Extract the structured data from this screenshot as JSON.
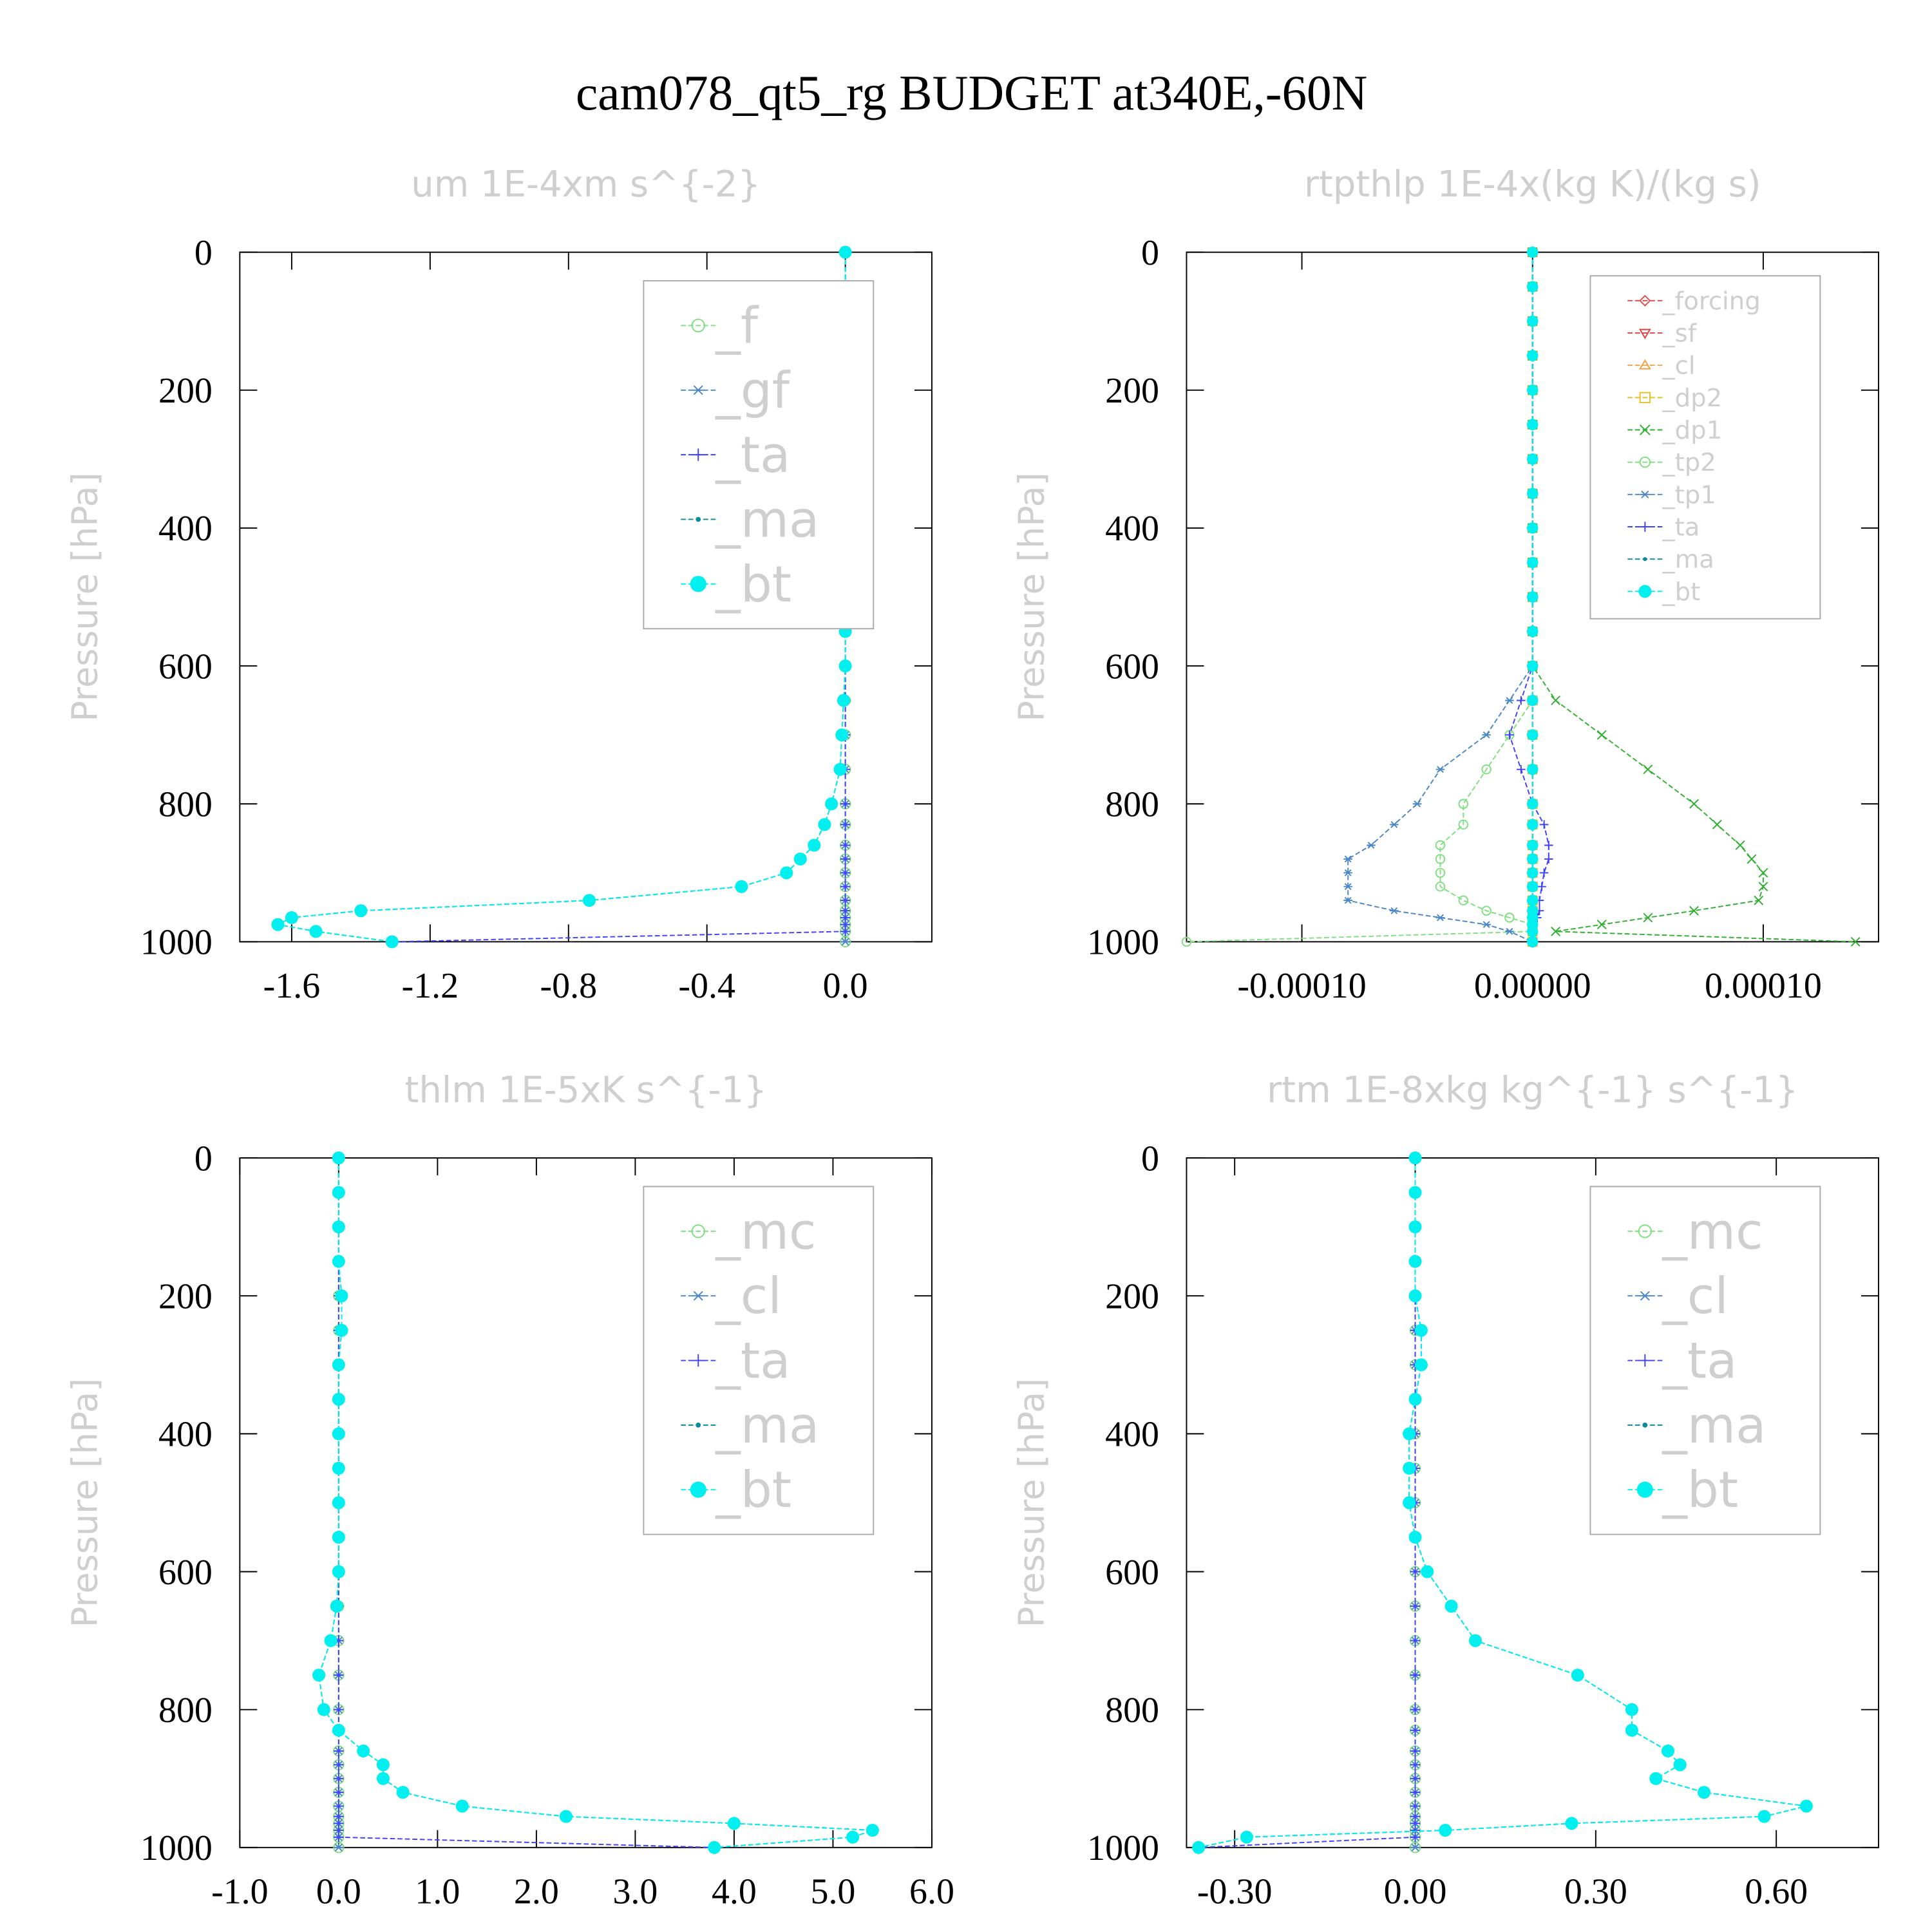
{
  "title": "cam078_qt5_rg  BUDGET at340E,-60N",
  "chart_data": [
    {
      "type": "line",
      "title": "um  1E-4xm s^{-2}",
      "ylabel": "Pressure [hPa]",
      "y": [
        0,
        50,
        100,
        150,
        200,
        250,
        300,
        350,
        400,
        450,
        500,
        550,
        600,
        650,
        700,
        750,
        800,
        830,
        860,
        880,
        900,
        920,
        940,
        955,
        965,
        975,
        985,
        1000
      ],
      "ylim": [
        1000,
        0
      ],
      "yticks": [
        0,
        200,
        400,
        600,
        800,
        1000
      ],
      "xlim": [
        -1.75,
        0.25
      ],
      "xticks": [
        -1.6,
        -1.2,
        -0.8,
        -0.4,
        {
          "value": 0,
          "label": "0.0"
        }
      ],
      "legend": "upper right",
      "series": [
        {
          "name": "_f",
          "color": "#7ee07e",
          "marker": "circle",
          "values": [
            0,
            0,
            0,
            0,
            0,
            0,
            0,
            0,
            0,
            0,
            0,
            0,
            0,
            0,
            0,
            0,
            0,
            0,
            0,
            0,
            0,
            0,
            0,
            0,
            0,
            0,
            0,
            0
          ]
        },
        {
          "name": "_gf",
          "color": "#4a86c8",
          "marker": "star",
          "values": [
            0,
            0,
            0,
            0,
            0,
            0,
            0,
            0,
            0,
            0,
            0,
            0,
            0,
            0,
            0,
            0,
            0,
            0,
            0,
            0,
            0,
            0,
            0,
            0,
            0,
            0,
            0,
            0
          ]
        },
        {
          "name": "_ta",
          "color": "#4040ff",
          "marker": "plus",
          "values": [
            0,
            0,
            0,
            0,
            0,
            0,
            0,
            0,
            0,
            0,
            0,
            0,
            0,
            0,
            0,
            0,
            0,
            0,
            0,
            0,
            0,
            0,
            0,
            0,
            0,
            0,
            0,
            -1.3
          ]
        },
        {
          "name": "_ma",
          "color": "#0a8a9a",
          "marker": "dot",
          "values": [
            0,
            0,
            0,
            0,
            0,
            0,
            0,
            0,
            0,
            0,
            0,
            0,
            0,
            -0.005,
            -0.01,
            -0.015,
            -0.04,
            -0.06,
            -0.09,
            -0.13,
            -0.17,
            -0.3,
            -0.74,
            -1.4,
            -1.6,
            -1.64,
            -1.53,
            -1.31
          ]
        },
        {
          "name": "_bt",
          "color": "#00f0f0",
          "marker": "bullet",
          "values": [
            0,
            0,
            0,
            0,
            0,
            0,
            0,
            0,
            0,
            0,
            0,
            0,
            0,
            -0.005,
            -0.01,
            -0.015,
            -0.04,
            -0.06,
            -0.09,
            -0.13,
            -0.17,
            -0.3,
            -0.74,
            -1.4,
            -1.6,
            -1.64,
            -1.53,
            -1.31
          ]
        }
      ]
    },
    {
      "type": "line",
      "title": "rtpthlp  1E-4x(kg K)/(kg s)",
      "ylabel": "Pressure [hPa]",
      "y": [
        0,
        50,
        100,
        150,
        200,
        250,
        300,
        350,
        400,
        450,
        500,
        550,
        600,
        650,
        700,
        750,
        800,
        830,
        860,
        880,
        900,
        920,
        940,
        955,
        965,
        975,
        985,
        1000
      ],
      "ylim": [
        1000,
        0
      ],
      "yticks": [
        0,
        200,
        400,
        600,
        800,
        1000
      ],
      "xlim": [
        -0.00015,
        0.00015
      ],
      "xticks": [
        {
          "value": -0.0001,
          "label": "-0.00010"
        },
        {
          "value": 0,
          "label": "0.00000"
        },
        {
          "value": 0.0001,
          "label": "0.00010"
        }
      ],
      "legend": "upper right",
      "series": [
        {
          "name": "_forcing",
          "color": "#e05050",
          "marker": "diamond",
          "values": [
            0,
            0,
            0,
            0,
            0,
            0,
            0,
            0,
            0,
            0,
            0,
            0,
            0,
            0,
            0,
            0,
            0,
            0,
            0,
            0,
            0,
            0,
            0,
            0,
            0,
            0,
            0,
            0
          ]
        },
        {
          "name": "_sf",
          "color": "#e04040",
          "marker": "tri-down",
          "values": [
            0,
            0,
            0,
            0,
            0,
            0,
            0,
            0,
            0,
            0,
            0,
            0,
            0,
            0,
            0,
            0,
            0,
            0,
            0,
            0,
            0,
            0,
            0,
            0,
            0,
            0,
            0,
            0
          ]
        },
        {
          "name": "_cl",
          "color": "#f0a040",
          "marker": "tri-up",
          "values": [
            0,
            0,
            0,
            0,
            0,
            0,
            0,
            0,
            0,
            0,
            0,
            0,
            0,
            0,
            0,
            0,
            0,
            0,
            0,
            0,
            0,
            0,
            0,
            0,
            0,
            0,
            0,
            0
          ]
        },
        {
          "name": "_dp2",
          "color": "#e8c020",
          "marker": "square",
          "values": [
            0,
            0,
            0,
            0,
            0,
            0,
            0,
            0,
            0,
            0,
            0,
            0,
            0,
            0,
            0,
            0,
            0,
            0,
            0,
            0,
            0,
            0,
            0,
            0,
            0,
            0,
            0,
            0
          ]
        },
        {
          "name": "_dp1",
          "color": "#30b030",
          "marker": "x",
          "values": [
            0,
            0,
            0,
            0,
            0,
            0,
            0,
            0,
            0,
            0,
            0,
            0,
            0,
            1e-05,
            3e-05,
            5e-05,
            7e-05,
            8e-05,
            9e-05,
            9.5e-05,
            0.0001,
            0.0001,
            9.8e-05,
            7e-05,
            5e-05,
            3e-05,
            1e-05,
            0.00014
          ]
        },
        {
          "name": "_tp2",
          "color": "#7ee07e",
          "marker": "circle",
          "values": [
            0,
            0,
            0,
            0,
            0,
            0,
            0,
            0,
            0,
            0,
            0,
            0,
            0,
            0,
            -1e-05,
            -2e-05,
            -3e-05,
            -3e-05,
            -4e-05,
            -4e-05,
            -4e-05,
            -4e-05,
            -3e-05,
            -2e-05,
            -1e-05,
            0,
            0,
            -0.00015
          ]
        },
        {
          "name": "_tp1",
          "color": "#4a86c8",
          "marker": "star",
          "values": [
            0,
            0,
            0,
            0,
            0,
            0,
            0,
            0,
            0,
            0,
            0,
            0,
            0,
            -1e-05,
            -2e-05,
            -4e-05,
            -5e-05,
            -6e-05,
            -7e-05,
            -8e-05,
            -8e-05,
            -8e-05,
            -8e-05,
            -6e-05,
            -4e-05,
            -2e-05,
            -1e-05,
            0
          ]
        },
        {
          "name": "_ta",
          "color": "#4040ff",
          "marker": "plus",
          "values": [
            0,
            0,
            0,
            0,
            0,
            0,
            0,
            0,
            0,
            0,
            0,
            0,
            0,
            -5e-06,
            -1e-05,
            -5e-06,
            0,
            5e-06,
            7e-06,
            7e-06,
            5e-06,
            4e-06,
            3e-06,
            3e-06,
            2e-06,
            0,
            0,
            0
          ]
        },
        {
          "name": "_ma",
          "color": "#0a8a9a",
          "marker": "dot",
          "values": [
            0,
            0,
            0,
            0,
            0,
            0,
            0,
            0,
            0,
            0,
            0,
            0,
            0,
            0,
            0,
            0,
            0,
            0,
            0,
            0,
            0,
            0,
            0,
            0,
            0,
            0,
            0,
            0
          ]
        },
        {
          "name": "_bt",
          "color": "#00f0f0",
          "marker": "bullet",
          "values": [
            0,
            0,
            0,
            0,
            0,
            0,
            0,
            0,
            0,
            0,
            0,
            0,
            0,
            0,
            0,
            0,
            0,
            0,
            0,
            0,
            0,
            0,
            0,
            0,
            0,
            0,
            0,
            0
          ]
        }
      ]
    },
    {
      "type": "line",
      "title": "thlm  1E-5xK s^{-1}",
      "ylabel": "Pressure [hPa]",
      "y": [
        0,
        50,
        100,
        150,
        200,
        250,
        300,
        350,
        400,
        450,
        500,
        550,
        600,
        650,
        700,
        750,
        800,
        830,
        860,
        880,
        900,
        920,
        940,
        955,
        965,
        975,
        985,
        1000
      ],
      "ylim": [
        1000,
        0
      ],
      "yticks": [
        0,
        200,
        400,
        600,
        800,
        1000
      ],
      "xlim": [
        -1,
        6
      ],
      "xticks": [
        {
          "value": -1,
          "label": "-1.0"
        },
        {
          "value": 0,
          "label": "0.0"
        },
        {
          "value": 1,
          "label": "1.0"
        },
        {
          "value": 2,
          "label": "2.0"
        },
        {
          "value": 3,
          "label": "3.0"
        },
        {
          "value": 4,
          "label": "4.0"
        },
        {
          "value": 5,
          "label": "5.0"
        },
        {
          "value": 6,
          "label": "6.0"
        }
      ],
      "legend": "upper right",
      "series": [
        {
          "name": "_mc",
          "color": "#7ee07e",
          "marker": "circle",
          "values": [
            0,
            0,
            0,
            0,
            0,
            0,
            0,
            0,
            0,
            0,
            0,
            0,
            0,
            0,
            0,
            0,
            0,
            0,
            0,
            0,
            0,
            0,
            0,
            0,
            0,
            0,
            0,
            0
          ]
        },
        {
          "name": "_cl",
          "color": "#4a86c8",
          "marker": "star",
          "values": [
            0,
            0,
            0,
            0,
            0,
            0,
            0,
            0,
            0,
            0,
            0,
            0,
            0,
            0,
            0,
            0,
            0,
            0,
            0,
            0,
            0,
            0,
            0,
            0,
            0,
            0,
            0,
            0
          ]
        },
        {
          "name": "_ta",
          "color": "#4040ff",
          "marker": "plus",
          "values": [
            0,
            0,
            0,
            0,
            0,
            0,
            0,
            0,
            0,
            0,
            0,
            0,
            0,
            0,
            0,
            0,
            0,
            0,
            0,
            0,
            0,
            0,
            0,
            0,
            0,
            0,
            0,
            3.8
          ]
        },
        {
          "name": "_ma",
          "color": "#0a8a9a",
          "marker": "dot",
          "values": [
            0,
            0,
            0,
            0,
            0.03,
            0.03,
            0,
            0,
            0,
            0,
            0,
            0,
            0,
            -0.02,
            -0.08,
            -0.2,
            -0.15,
            0,
            0.25,
            0.45,
            0.45,
            0.65,
            1.25,
            2.3,
            4.0,
            5.4,
            5.2,
            3.8
          ]
        },
        {
          "name": "_bt",
          "color": "#00f0f0",
          "marker": "bullet",
          "values": [
            0,
            0,
            0,
            0,
            0.03,
            0.03,
            0,
            0,
            0,
            0,
            0,
            0,
            0,
            -0.02,
            -0.08,
            -0.2,
            -0.15,
            0,
            0.25,
            0.45,
            0.45,
            0.65,
            1.25,
            2.3,
            4.0,
            5.4,
            5.2,
            3.8
          ]
        }
      ]
    },
    {
      "type": "line",
      "title": "rtm  1E-8xkg kg^{-1} s^{-1}",
      "ylabel": "Pressure [hPa]",
      "y": [
        0,
        50,
        100,
        150,
        200,
        250,
        300,
        350,
        400,
        450,
        500,
        550,
        600,
        650,
        700,
        750,
        800,
        830,
        860,
        880,
        900,
        920,
        940,
        955,
        965,
        975,
        985,
        1000
      ],
      "ylim": [
        1000,
        0
      ],
      "yticks": [
        0,
        200,
        400,
        600,
        800,
        1000
      ],
      "xlim": [
        -0.38,
        0.77
      ],
      "xticks": [
        {
          "value": -0.3,
          "label": "-0.30"
        },
        {
          "value": 0,
          "label": "0.00"
        },
        {
          "value": 0.3,
          "label": "0.30"
        },
        {
          "value": 0.6,
          "label": "0.60"
        }
      ],
      "legend": "upper right",
      "series": [
        {
          "name": "_mc",
          "color": "#7ee07e",
          "marker": "circle",
          "values": [
            0,
            0,
            0,
            0,
            0,
            0,
            0,
            0,
            0,
            0,
            0,
            0,
            0,
            0,
            0,
            0,
            0,
            0,
            0,
            0,
            0,
            0,
            0,
            0,
            0,
            0,
            0,
            0
          ]
        },
        {
          "name": "_cl",
          "color": "#4a86c8",
          "marker": "star",
          "values": [
            0,
            0,
            0,
            0,
            0,
            0,
            0,
            0,
            0,
            0,
            0,
            0,
            0,
            0,
            0,
            0,
            0,
            0,
            0,
            0,
            0,
            0,
            0,
            0,
            0,
            0,
            0,
            0
          ]
        },
        {
          "name": "_ta",
          "color": "#4040ff",
          "marker": "plus",
          "values": [
            0,
            0,
            0,
            0,
            0,
            0,
            0,
            0,
            0,
            0,
            0,
            0,
            0,
            0,
            0,
            0,
            0,
            0,
            0,
            0,
            0,
            0,
            0,
            0,
            0,
            0,
            0,
            -0.36
          ]
        },
        {
          "name": "_ma",
          "color": "#0a8a9a",
          "marker": "dot",
          "values": [
            0,
            0,
            0,
            0,
            0,
            0.01,
            0.01,
            0,
            -0.01,
            -0.01,
            -0.01,
            0,
            0.02,
            0.06,
            0.1,
            0.27,
            0.36,
            0.36,
            0.42,
            0.44,
            0.4,
            0.48,
            0.65,
            0.58,
            0.26,
            0.05,
            -0.28,
            -0.36
          ]
        },
        {
          "name": "_bt",
          "color": "#00f0f0",
          "marker": "bullet",
          "values": [
            0,
            0,
            0,
            0,
            0,
            0.01,
            0.01,
            0,
            -0.01,
            -0.01,
            -0.01,
            0,
            0.02,
            0.06,
            0.1,
            0.27,
            0.36,
            0.36,
            0.42,
            0.44,
            0.4,
            0.48,
            0.65,
            0.58,
            0.26,
            0.05,
            -0.28,
            -0.36
          ]
        }
      ]
    }
  ]
}
